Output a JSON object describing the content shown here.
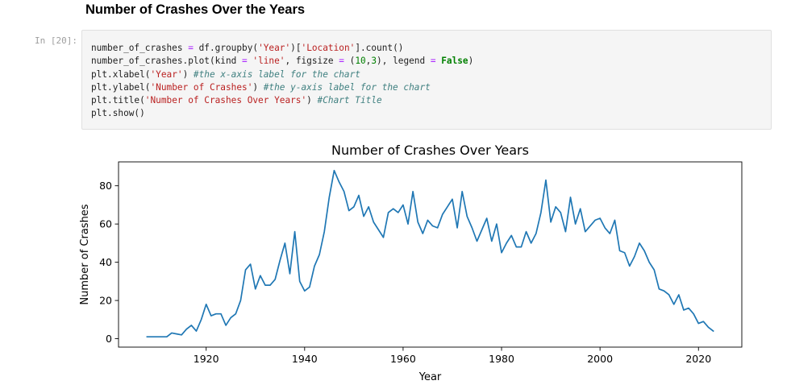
{
  "notebook": {
    "heading": "Number of Crashes Over the Years",
    "cell_prompt": "In [20]:"
  },
  "code": {
    "lines": [
      [
        {
          "t": "number_of_crashes ",
          "c": ""
        },
        {
          "t": "=",
          "c": "op"
        },
        {
          "t": " df.groupby(",
          "c": ""
        },
        {
          "t": "'Year'",
          "c": "str"
        },
        {
          "t": ")[",
          "c": ""
        },
        {
          "t": "'Location'",
          "c": "str"
        },
        {
          "t": "].count()",
          "c": ""
        }
      ],
      [
        {
          "t": "number_of_crashes.plot(kind ",
          "c": ""
        },
        {
          "t": "=",
          "c": "op"
        },
        {
          "t": " ",
          "c": ""
        },
        {
          "t": "'line'",
          "c": "str"
        },
        {
          "t": ", figsize ",
          "c": ""
        },
        {
          "t": "=",
          "c": "op"
        },
        {
          "t": " (",
          "c": ""
        },
        {
          "t": "10",
          "c": "num"
        },
        {
          "t": ",",
          "c": ""
        },
        {
          "t": "3",
          "c": "num"
        },
        {
          "t": "), legend ",
          "c": ""
        },
        {
          "t": "=",
          "c": "op"
        },
        {
          "t": " ",
          "c": ""
        },
        {
          "t": "False",
          "c": "kw"
        },
        {
          "t": ")",
          "c": ""
        }
      ],
      [
        {
          "t": "plt.xlabel(",
          "c": ""
        },
        {
          "t": "'Year'",
          "c": "str"
        },
        {
          "t": ") ",
          "c": ""
        },
        {
          "t": "#the x-axis label for the chart",
          "c": "com"
        }
      ],
      [
        {
          "t": "plt.ylabel(",
          "c": ""
        },
        {
          "t": "'Number of Crashes'",
          "c": "str"
        },
        {
          "t": ") ",
          "c": ""
        },
        {
          "t": "#the y-axis label for the chart",
          "c": "com"
        }
      ],
      [
        {
          "t": "plt.title(",
          "c": ""
        },
        {
          "t": "'Number of Crashes Over Years'",
          "c": "str"
        },
        {
          "t": ") ",
          "c": ""
        },
        {
          "t": "#Chart Title",
          "c": "com"
        }
      ],
      [
        {
          "t": "plt.show()",
          "c": ""
        }
      ]
    ]
  },
  "chart_data": {
    "type": "line",
    "title": "Number of Crashes Over Years",
    "xlabel": "Year",
    "ylabel": "Number of Crashes",
    "xlim": [
      1902.2,
      2028.8
    ],
    "ylim": [
      -4.4,
      92.5
    ],
    "xticks": [
      1920,
      1940,
      1960,
      1980,
      2000,
      2020
    ],
    "yticks": [
      0,
      20,
      40,
      60,
      80
    ],
    "grid": false,
    "legend": "none",
    "line_color": "#1f77b4",
    "x": [
      1908,
      1909,
      1910,
      1911,
      1912,
      1913,
      1914,
      1915,
      1916,
      1917,
      1918,
      1919,
      1920,
      1921,
      1922,
      1923,
      1924,
      1925,
      1926,
      1927,
      1928,
      1929,
      1930,
      1931,
      1932,
      1933,
      1934,
      1935,
      1936,
      1937,
      1938,
      1939,
      1940,
      1941,
      1942,
      1943,
      1944,
      1945,
      1946,
      1947,
      1948,
      1949,
      1950,
      1951,
      1952,
      1953,
      1954,
      1955,
      1956,
      1957,
      1958,
      1959,
      1960,
      1961,
      1962,
      1963,
      1964,
      1965,
      1966,
      1967,
      1968,
      1969,
      1970,
      1971,
      1972,
      1973,
      1974,
      1975,
      1976,
      1977,
      1978,
      1979,
      1980,
      1981,
      1982,
      1983,
      1984,
      1985,
      1986,
      1987,
      1988,
      1989,
      1990,
      1991,
      1992,
      1993,
      1994,
      1995,
      1996,
      1997,
      1998,
      1999,
      2000,
      2001,
      2002,
      2003,
      2004,
      2005,
      2006,
      2007,
      2008,
      2009,
      2010,
      2011,
      2012,
      2013,
      2014,
      2015,
      2016,
      2017,
      2018,
      2019,
      2020,
      2021,
      2022,
      2023
    ],
    "y": [
      1,
      1,
      1,
      1,
      1,
      3,
      2.5,
      2,
      5,
      7,
      4,
      10,
      18,
      12,
      13,
      13,
      7,
      11,
      13,
      20,
      36,
      39,
      26,
      33,
      28,
      28,
      31,
      41,
      50,
      34,
      56,
      30,
      25,
      27,
      38,
      44,
      56,
      74,
      88,
      82,
      77,
      67,
      69,
      75,
      64,
      69,
      61,
      57,
      53,
      66,
      68,
      66,
      70,
      60,
      77,
      61,
      55,
      62,
      59,
      58,
      65,
      69,
      73,
      58,
      77,
      64,
      58,
      51,
      57,
      63,
      51,
      60,
      45,
      50,
      54,
      48,
      48,
      56,
      50,
      55,
      66,
      83,
      61,
      69,
      66,
      56,
      74,
      60,
      68,
      56,
      59,
      62,
      63,
      58,
      55,
      62,
      46,
      45,
      38,
      43,
      50,
      46,
      40,
      36,
      26,
      25,
      23,
      18,
      23,
      15,
      16,
      13,
      8,
      9,
      6,
      4
    ]
  }
}
